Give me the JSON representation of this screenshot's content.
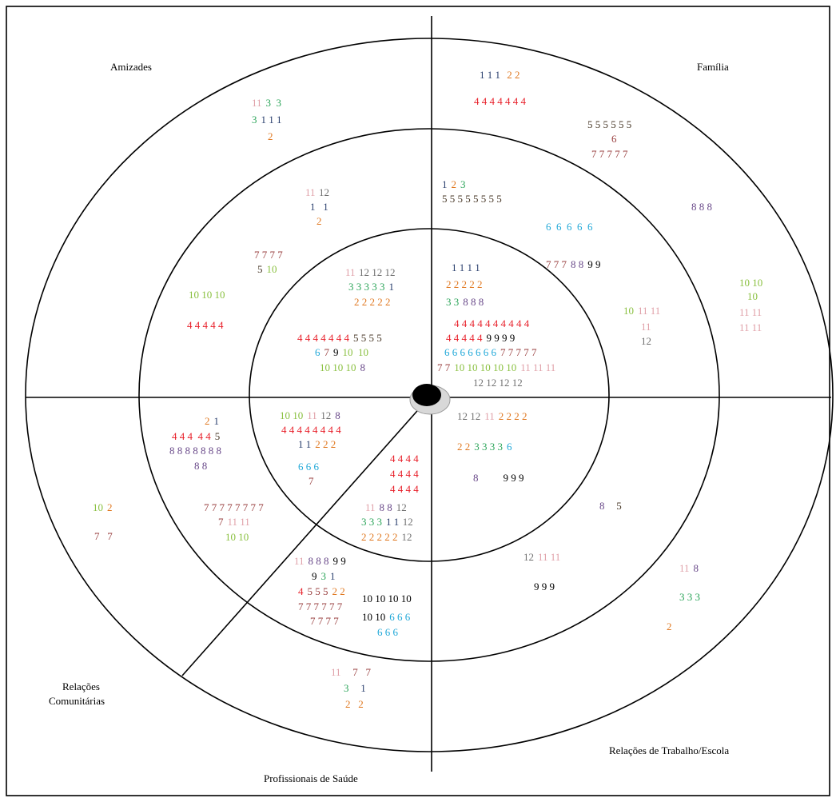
{
  "sectors": [
    {
      "lines": [
        "Amizades"
      ]
    },
    {
      "lines": [
        "Família"
      ]
    },
    {
      "lines": [
        "Relações",
        "Comunitárias"
      ]
    },
    {
      "lines": [
        "Relações de Trabalho/Escola"
      ]
    },
    {
      "lines": [
        "Profissionais de Saúde"
      ]
    }
  ],
  "lines": [
    {
      "segments": [
        {
          "text": "11",
          "color": "#e0a0a8"
        },
        {
          "text": "3  3",
          "color": "#2ca55a"
        }
      ]
    },
    {
      "segments": [
        {
          "text": "3",
          "color": "#2ca55a"
        },
        {
          "text": "1 1 1",
          "color": "#2a3f6e"
        }
      ]
    },
    {
      "segments": [
        {
          "text": "2",
          "color": "#e07820"
        }
      ]
    },
    {
      "segments": [
        {
          "text": "1 1 1",
          "color": "#2a3f6e"
        },
        {
          "text": " 2 2",
          "color": "#e07820"
        }
      ]
    },
    {
      "segments": [
        {
          "text": "4 4 4 4 4 4 4",
          "color": "#e8202a"
        }
      ]
    },
    {
      "segments": [
        {
          "text": "5 5 5 5 5 5",
          "color": "#4a3a2a"
        }
      ]
    },
    {
      "segments": [
        {
          "text": "6",
          "color": "#9a4040"
        }
      ]
    },
    {
      "segments": [
        {
          "text": "7 7 7 7 7",
          "color": "#9a4040"
        }
      ]
    },
    {
      "segments": [
        {
          "text": "8 8 8",
          "color": "#6a4a8a"
        }
      ]
    },
    {
      "segments": [
        {
          "text": "10 10",
          "color": "#8ac040"
        }
      ]
    },
    {
      "segments": [
        {
          "text": "10",
          "color": "#8ac040"
        }
      ]
    },
    {
      "segments": [
        {
          "text": "11 11",
          "color": "#e0a0a8"
        }
      ]
    },
    {
      "segments": [
        {
          "text": "11 11",
          "color": "#e0a0a8"
        }
      ]
    },
    {
      "segments": [
        {
          "text": "7 7 7 7",
          "color": "#9a4040"
        }
      ]
    },
    {
      "segments": [
        {
          "text": "5",
          "color": "#4a3a2a"
        },
        {
          "text": "10",
          "color": "#8ac040"
        }
      ]
    },
    {
      "segments": [
        {
          "text": "11",
          "color": "#e0a0a8"
        },
        {
          "text": "12",
          "color": "#707070"
        }
      ]
    },
    {
      "segments": [
        {
          "text": "1   1",
          "color": "#2a3f6e"
        }
      ]
    },
    {
      "segments": [
        {
          "text": "2",
          "color": "#e07820"
        }
      ]
    },
    {
      "segments": [
        {
          "text": "10 10 10",
          "color": "#8ac040"
        }
      ]
    },
    {
      "segments": [
        {
          "text": "4 4 4 4 4",
          "color": "#e8202a"
        }
      ]
    },
    {
      "segments": [
        {
          "text": "1",
          "color": "#2a3f6e"
        },
        {
          "text": "2",
          "color": "#e07820"
        },
        {
          "text": "3",
          "color": "#2ca55a"
        }
      ]
    },
    {
      "segments": [
        {
          "text": "5 5 5 5 5 5 5 5",
          "color": "#4a3a2a"
        }
      ]
    },
    {
      "segments": [
        {
          "text": "6  6  6  6  6",
          "color": "#20a8d8"
        }
      ]
    },
    {
      "segments": [
        {
          "text": "7 7 7",
          "color": "#9a4040"
        },
        {
          "text": "8 8",
          "color": "#6a4a8a"
        },
        {
          "text": "9 9",
          "color": "#000000"
        }
      ]
    },
    {
      "segments": [
        {
          "text": "10",
          "color": "#8ac040"
        },
        {
          "text": "11 11",
          "color": "#e0a0a8"
        }
      ]
    },
    {
      "segments": [
        {
          "text": "11",
          "color": "#e0a0a8"
        }
      ]
    },
    {
      "segments": [
        {
          "text": "12",
          "color": "#707070"
        }
      ]
    },
    {
      "segments": [
        {
          "text": "11",
          "color": "#e0a0a8"
        },
        {
          "text": "12 12 12",
          "color": "#707070"
        }
      ]
    },
    {
      "segments": [
        {
          "text": "3 3 3 3 3",
          "color": "#2ca55a"
        },
        {
          "text": "1",
          "color": "#2a3f6e"
        }
      ]
    },
    {
      "segments": [
        {
          "text": "2 2 2 2 2",
          "color": "#e07820"
        }
      ]
    },
    {
      "segments": [
        {
          "text": "4 4 4 4 4 4 4",
          "color": "#e8202a"
        },
        {
          "text": "5 5 5 5",
          "color": "#4a3a2a"
        }
      ]
    },
    {
      "segments": [
        {
          "text": "6",
          "color": "#20a8d8"
        },
        {
          "text": "7",
          "color": "#9a4040"
        },
        {
          "text": "9",
          "color": "#000000"
        },
        {
          "text": "10  10",
          "color": "#8ac040"
        }
      ]
    },
    {
      "segments": [
        {
          "text": "10 10 10",
          "color": "#8ac040"
        },
        {
          "text": "8",
          "color": "#6a4a8a"
        }
      ]
    },
    {
      "segments": [
        {
          "text": "1 1 1 1",
          "color": "#2a3f6e"
        }
      ]
    },
    {
      "segments": [
        {
          "text": "2 2 2 2 2",
          "color": "#e07820"
        }
      ]
    },
    {
      "segments": [
        {
          "text": "3 3",
          "color": "#2ca55a"
        },
        {
          "text": "8 8 8",
          "color": "#6a4a8a"
        }
      ]
    },
    {
      "segments": [
        {
          "text": "4 4 4 4 4 4 4 4 4 4",
          "color": "#e8202a"
        }
      ]
    },
    {
      "segments": [
        {
          "text": "4 4 4 4 4",
          "color": "#e8202a"
        },
        {
          "text": "9 9 9 9",
          "color": "#000000"
        }
      ]
    },
    {
      "segments": [
        {
          "text": "6 6 6 6 6 6 6",
          "color": "#20a8d8"
        },
        {
          "text": "7 7 7 7 7",
          "color": "#9a4040"
        }
      ]
    },
    {
      "segments": [
        {
          "text": "7 7",
          "color": "#9a4040"
        },
        {
          "text": "10 10 10 10 10",
          "color": "#8ac040"
        },
        {
          "text": "11 11 11",
          "color": "#e0a0a8"
        }
      ]
    },
    {
      "segments": [
        {
          "text": "12 12 12 12",
          "color": "#707070"
        }
      ]
    },
    {
      "segments": [
        {
          "text": "12 12",
          "color": "#707070"
        },
        {
          "text": "11",
          "color": "#e0a0a8"
        },
        {
          "text": "2 2 2 2",
          "color": "#e07820"
        }
      ]
    },
    {
      "segments": [
        {
          "text": "2 2",
          "color": "#e07820"
        },
        {
          "text": "3 3 3 3",
          "color": "#2ca55a"
        },
        {
          "text": "6",
          "color": "#20a8d8"
        }
      ]
    },
    {
      "segments": [
        {
          "text": "8",
          "color": "#6a4a8a"
        },
        {
          "text": "        9 9 9",
          "color": "#000000"
        }
      ]
    },
    {
      "segments": [
        {
          "text": "8",
          "color": "#6a4a8a"
        },
        {
          "text": "   5",
          "color": "#4a3a2a"
        }
      ]
    },
    {
      "segments": [
        {
          "text": "12",
          "color": "#707070"
        },
        {
          "text": "11 11",
          "color": "#e0a0a8"
        }
      ]
    },
    {
      "segments": [
        {
          "text": "9 9 9",
          "color": "#000000"
        }
      ]
    },
    {
      "segments": [
        {
          "text": "11",
          "color": "#e0a0a8"
        },
        {
          "text": "8",
          "color": "#6a4a8a"
        }
      ]
    },
    {
      "segments": [
        {
          "text": "3 3 3",
          "color": "#2ca55a"
        }
      ]
    },
    {
      "segments": [
        {
          "text": "2",
          "color": "#e07820"
        }
      ]
    },
    {
      "segments": [
        {
          "text": "10 10",
          "color": "#8ac040"
        },
        {
          "text": "11",
          "color": "#e0a0a8"
        },
        {
          "text": "12",
          "color": "#707070"
        },
        {
          "text": "8",
          "color": "#6a4a8a"
        }
      ]
    },
    {
      "segments": [
        {
          "text": "4 4 4 4 4 4 4 4",
          "color": "#e8202a"
        }
      ]
    },
    {
      "segments": [
        {
          "text": "1 1",
          "color": "#2a3f6e"
        },
        {
          "text": "2 2 2",
          "color": "#e07820"
        }
      ]
    },
    {
      "segments": [
        {
          "text": "6 6 6",
          "color": "#20a8d8"
        }
      ]
    },
    {
      "segments": [
        {
          "text": "7",
          "color": "#9a4040"
        }
      ]
    },
    {
      "segments": [
        {
          "text": "4 4 4 4",
          "color": "#e8202a"
        }
      ]
    },
    {
      "segments": [
        {
          "text": "4 4 4 4",
          "color": "#e8202a"
        }
      ]
    },
    {
      "segments": [
        {
          "text": "4 4 4 4",
          "color": "#e8202a"
        }
      ]
    },
    {
      "segments": [
        {
          "text": "11",
          "color": "#e0a0a8"
        },
        {
          "text": "8 8",
          "color": "#6a4a8a"
        },
        {
          "text": "12",
          "color": "#707070"
        }
      ]
    },
    {
      "segments": [
        {
          "text": "3 3 3",
          "color": "#2ca55a"
        },
        {
          "text": "1 1",
          "color": "#2a3f6e"
        },
        {
          "text": "12",
          "color": "#707070"
        }
      ]
    },
    {
      "segments": [
        {
          "text": "2 2 2 2 2",
          "color": "#e07820"
        },
        {
          "text": "12",
          "color": "#707070"
        }
      ]
    },
    {
      "segments": [
        {
          "text": "2",
          "color": "#e07820"
        },
        {
          "text": "1",
          "color": "#2a3f6e"
        }
      ]
    },
    {
      "segments": [
        {
          "text": "4 4 4  4 4",
          "color": "#e8202a"
        },
        {
          "text": "5",
          "color": "#4a3a2a"
        }
      ]
    },
    {
      "segments": [
        {
          "text": "8 8 8 8 8 8 8",
          "color": "#6a4a8a"
        }
      ]
    },
    {
      "segments": [
        {
          "text": "8 8",
          "color": "#6a4a8a"
        }
      ]
    },
    {
      "segments": [
        {
          "text": "7 7 7 7 7 7 7 7",
          "color": "#9a4040"
        }
      ]
    },
    {
      "segments": [
        {
          "text": "7",
          "color": "#9a4040"
        },
        {
          "text": "11 11",
          "color": "#e0a0a8"
        }
      ]
    },
    {
      "segments": [
        {
          "text": "10 10",
          "color": "#8ac040"
        }
      ]
    },
    {
      "segments": [
        {
          "text": "10",
          "color": "#8ac040"
        },
        {
          "text": "2",
          "color": "#e07820"
        }
      ]
    },
    {
      "segments": [
        {
          "text": "7   7",
          "color": "#9a4040"
        }
      ]
    },
    {
      "segments": [
        {
          "text": "11",
          "color": "#e0a0a8"
        },
        {
          "text": "8 8 8",
          "color": "#6a4a8a"
        },
        {
          "text": "9 9",
          "color": "#000000"
        }
      ]
    },
    {
      "segments": [
        {
          "text": "9",
          "color": "#000000"
        },
        {
          "text": "3",
          "color": "#2ca55a"
        },
        {
          "text": "1",
          "color": "#2a3f6e"
        }
      ]
    },
    {
      "segments": [
        {
          "text": "4",
          "color": "#e8202a"
        },
        {
          "text": "5 5 5",
          "color": "#9a4040"
        },
        {
          "text": "2 2",
          "color": "#e07820"
        }
      ]
    },
    {
      "segments": [
        {
          "text": "7 7 7 7 7 7",
          "color": "#9a4040"
        }
      ]
    },
    {
      "segments": [
        {
          "text": "7 7 7 7",
          "color": "#9a4040"
        }
      ]
    },
    {
      "segments": [
        {
          "text": "10 10 10 10",
          "color": "#000000"
        }
      ]
    },
    {
      "segments": [
        {
          "text": "10 10",
          "color": "#000000"
        },
        {
          "text": "6 6 6",
          "color": "#20a8d8"
        }
      ]
    },
    {
      "segments": [
        {
          "text": "6 6 6",
          "color": "#20a8d8"
        }
      ]
    },
    {
      "segments": [
        {
          "text": "11",
          "color": "#e0a0a8"
        },
        {
          "text": "   7   7",
          "color": "#9a4040"
        }
      ]
    },
    {
      "segments": [
        {
          "text": "3",
          "color": "#2ca55a"
        },
        {
          "text": "   1",
          "color": "#2a3f6e"
        }
      ]
    },
    {
      "segments": [
        {
          "text": "2   2",
          "color": "#e07820"
        }
      ]
    }
  ]
}
